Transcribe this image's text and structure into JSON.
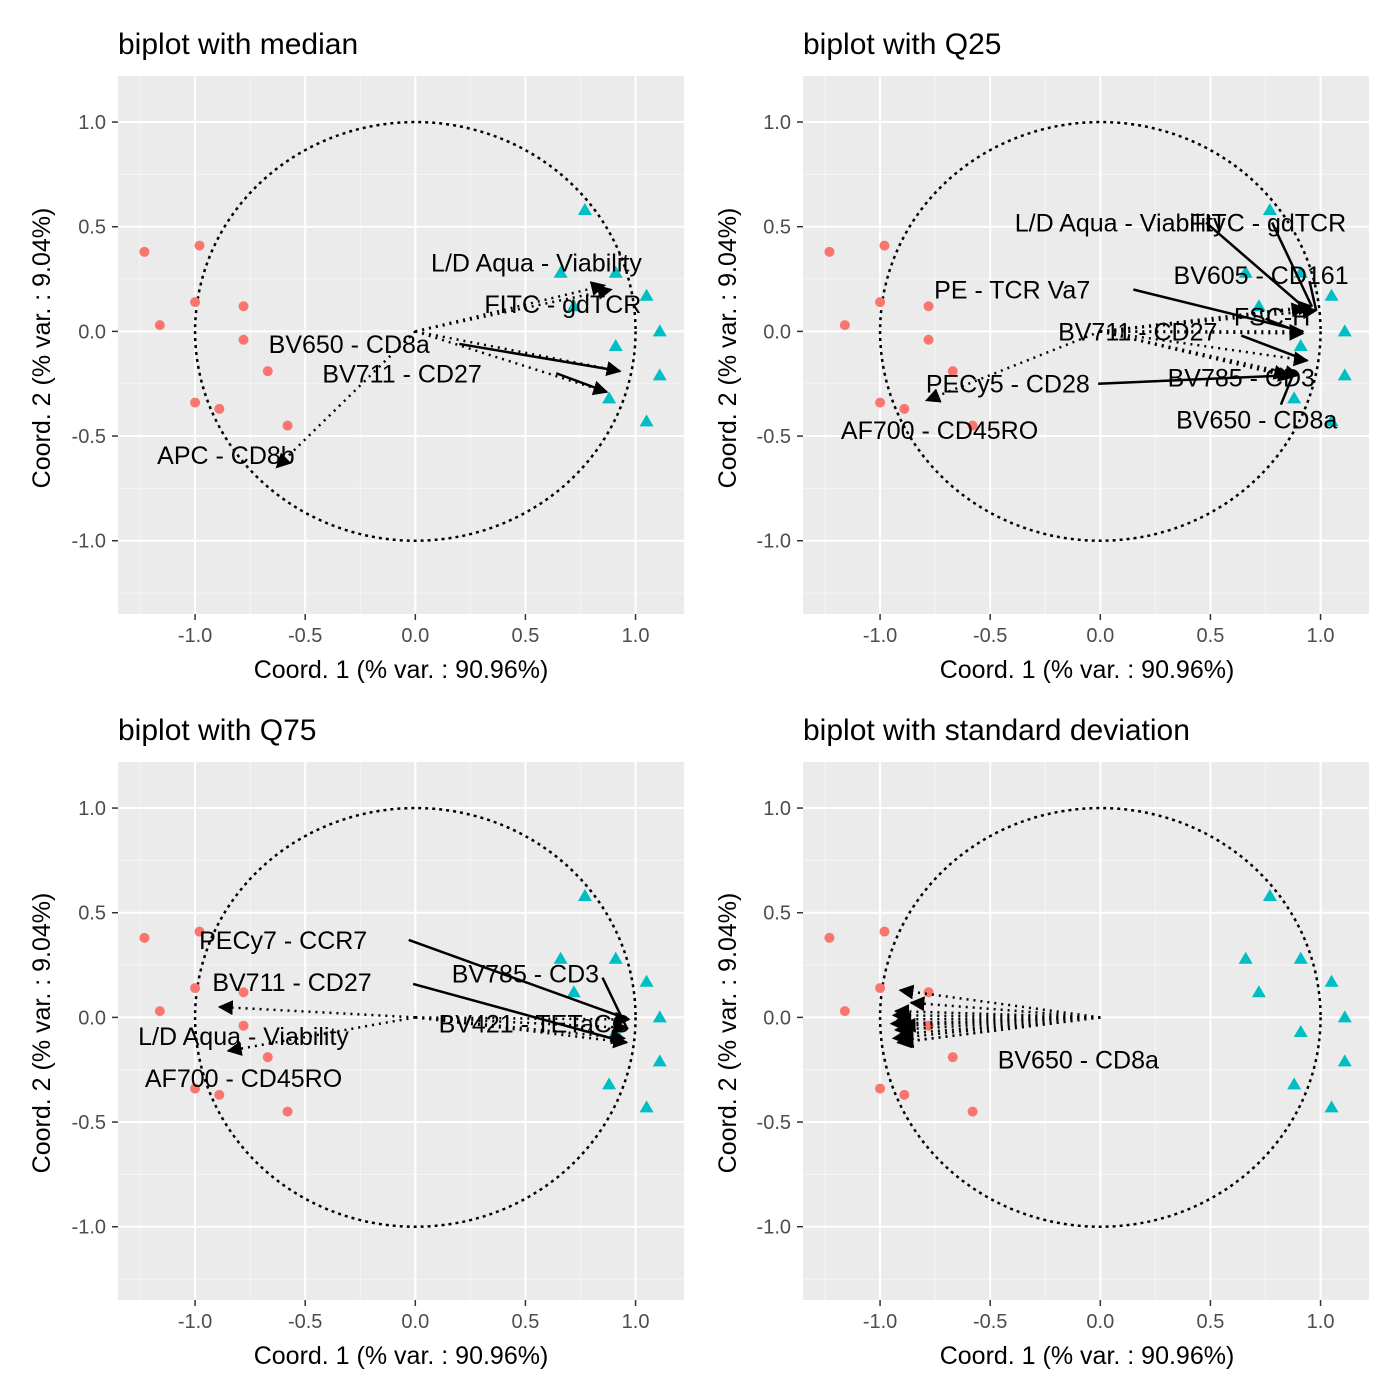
{
  "colors": {
    "panel_background": "#ebebeb",
    "grid_major": "#ffffff",
    "grid_minor": "#f5f5f5",
    "group_a": "#f8766d",
    "group_b": "#00bfc4",
    "arrow": "#000000"
  },
  "chart_data": [
    {
      "type": "scatter",
      "title": "biplot with median",
      "xlabel": "Coord. 1 (% var. : 90.96%)",
      "ylabel": "Coord. 2 (% var. : 9.04%)",
      "xlim": [
        -1.35,
        1.22
      ],
      "ylim": [
        -1.35,
        1.22
      ],
      "xticks": [
        -1.0,
        -0.5,
        0.0,
        0.5,
        1.0
      ],
      "yticks": [
        -1.0,
        -0.5,
        0.0,
        0.5,
        1.0
      ],
      "grid": true,
      "unit_circle": true,
      "series": [
        {
          "marker": "circle",
          "color": "#f8766d",
          "points": [
            [
              -1.23,
              0.38
            ],
            [
              -0.98,
              0.41
            ],
            [
              -1.0,
              0.14
            ],
            [
              -0.78,
              0.12
            ],
            [
              -1.16,
              0.03
            ],
            [
              -0.78,
              -0.04
            ],
            [
              -0.67,
              -0.19
            ],
            [
              -1.0,
              -0.34
            ],
            [
              -0.89,
              -0.37
            ],
            [
              -0.58,
              -0.45
            ]
          ]
        },
        {
          "marker": "triangle",
          "color": "#00bfc4",
          "points": [
            [
              0.77,
              0.58
            ],
            [
              0.66,
              0.28
            ],
            [
              0.91,
              0.28
            ],
            [
              0.72,
              0.12
            ],
            [
              1.05,
              0.17
            ],
            [
              1.11,
              0.0
            ],
            [
              0.91,
              -0.07
            ],
            [
              1.11,
              -0.21
            ],
            [
              0.88,
              -0.32
            ],
            [
              1.05,
              -0.43
            ]
          ]
        }
      ],
      "arrows": [
        {
          "label": "L/D Aqua - Viability",
          "tip": [
            0.86,
            0.22
          ],
          "label_at": [
            0.55,
            0.33
          ],
          "solid_from": null
        },
        {
          "label": "FITC - gdTCR",
          "tip": [
            0.89,
            0.2
          ],
          "label_at": [
            0.67,
            0.13
          ],
          "solid_from": null
        },
        {
          "label": "BV650 - CD8a",
          "tip": [
            0.93,
            -0.19
          ],
          "label_at": [
            -0.3,
            -0.06
          ],
          "solid_from": [
            0.2,
            -0.06
          ]
        },
        {
          "label": "BV711 - CD27",
          "tip": [
            0.87,
            -0.29
          ],
          "label_at": [
            -0.06,
            -0.2
          ],
          "solid_from": [
            0.64,
            -0.2
          ]
        },
        {
          "label": "APC - CD8b",
          "tip": [
            -0.63,
            -0.65
          ],
          "label_at": [
            -0.86,
            -0.59
          ],
          "solid_from": null
        }
      ]
    },
    {
      "type": "scatter",
      "title": "biplot with Q25",
      "xlabel": "Coord. 1 (% var. : 90.96%)",
      "ylabel": "Coord. 2 (% var. : 9.04%)",
      "xlim": [
        -1.35,
        1.22
      ],
      "ylim": [
        -1.35,
        1.22
      ],
      "xticks": [
        -1.0,
        -0.5,
        0.0,
        0.5,
        1.0
      ],
      "yticks": [
        -1.0,
        -0.5,
        0.0,
        0.5,
        1.0
      ],
      "grid": true,
      "unit_circle": true,
      "series": [
        {
          "marker": "circle",
          "color": "#f8766d",
          "points": [
            [
              -1.23,
              0.38
            ],
            [
              -0.98,
              0.41
            ],
            [
              -1.0,
              0.14
            ],
            [
              -0.78,
              0.12
            ],
            [
              -1.16,
              0.03
            ],
            [
              -0.78,
              -0.04
            ],
            [
              -0.67,
              -0.19
            ],
            [
              -1.0,
              -0.34
            ],
            [
              -0.89,
              -0.37
            ],
            [
              -0.58,
              -0.45
            ]
          ]
        },
        {
          "marker": "triangle",
          "color": "#00bfc4",
          "points": [
            [
              0.77,
              0.58
            ],
            [
              0.66,
              0.28
            ],
            [
              0.91,
              0.28
            ],
            [
              0.72,
              0.12
            ],
            [
              1.05,
              0.17
            ],
            [
              1.11,
              0.0
            ],
            [
              0.91,
              -0.07
            ],
            [
              1.11,
              -0.21
            ],
            [
              0.88,
              -0.32
            ],
            [
              1.05,
              -0.43
            ]
          ]
        }
      ],
      "arrows": [
        {
          "label": "L/D Aqua - Viability",
          "tip": [
            0.93,
            0.11
          ],
          "label_at": [
            0.09,
            0.52
          ],
          "solid_from": [
            0.48,
            0.52
          ]
        },
        {
          "label": "FITC - gdTCR",
          "tip": [
            0.96,
            0.12
          ],
          "label_at": [
            0.76,
            0.52
          ],
          "solid_from": [
            0.78,
            0.52
          ]
        },
        {
          "label": "BV605 - CD161",
          "tip": [
            0.98,
            0.1
          ],
          "label_at": [
            0.73,
            0.27
          ],
          "solid_from": [
            0.95,
            0.24
          ]
        },
        {
          "label": "PE - TCR Va7",
          "tip": [
            0.92,
            0.0
          ],
          "label_at": [
            -0.4,
            0.2
          ],
          "solid_from": [
            0.15,
            0.2
          ]
        },
        {
          "label": "FSC-H",
          "tip": [
            0.92,
            -0.01
          ],
          "label_at": [
            0.78,
            0.07
          ],
          "solid_from": [
            0.75,
            0.06
          ]
        },
        {
          "label": "BV711 - CD27",
          "tip": [
            0.94,
            -0.14
          ],
          "label_at": [
            0.17,
            0.0
          ],
          "solid_from": [
            0.64,
            -0.02
          ]
        },
        {
          "label": "BV785 - CD3",
          "tip": [
            0.9,
            -0.21
          ],
          "label_at": [
            0.64,
            -0.22
          ],
          "solid_from": null
        },
        {
          "label": "PECy5 - CD28",
          "tip": [
            0.85,
            -0.21
          ],
          "label_at": [
            -0.42,
            -0.25
          ],
          "solid_from": [
            -0.01,
            -0.25
          ]
        },
        {
          "label": "BV650 - CD8a",
          "tip": [
            0.87,
            -0.22
          ],
          "label_at": [
            0.71,
            -0.42
          ],
          "solid_from": [
            0.82,
            -0.35
          ]
        },
        {
          "label": "AF700 - CD45RO",
          "tip": [
            -0.79,
            -0.33
          ],
          "label_at": [
            -0.73,
            -0.47
          ],
          "solid_from": null
        }
      ]
    },
    {
      "type": "scatter",
      "title": "biplot with Q75",
      "xlabel": "Coord. 1 (% var. : 90.96%)",
      "ylabel": "Coord. 2 (% var. : 9.04%)",
      "xlim": [
        -1.35,
        1.22
      ],
      "ylim": [
        -1.35,
        1.22
      ],
      "xticks": [
        -1.0,
        -0.5,
        0.0,
        0.5,
        1.0
      ],
      "yticks": [
        -1.0,
        -0.5,
        0.0,
        0.5,
        1.0
      ],
      "grid": true,
      "unit_circle": true,
      "series": [
        {
          "marker": "circle",
          "color": "#f8766d",
          "points": [
            [
              -1.23,
              0.38
            ],
            [
              -0.98,
              0.41
            ],
            [
              -1.0,
              0.14
            ],
            [
              -0.78,
              0.12
            ],
            [
              -1.16,
              0.03
            ],
            [
              -0.78,
              -0.04
            ],
            [
              -0.67,
              -0.19
            ],
            [
              -1.0,
              -0.34
            ],
            [
              -0.89,
              -0.37
            ],
            [
              -0.58,
              -0.45
            ]
          ]
        },
        {
          "marker": "triangle",
          "color": "#00bfc4",
          "points": [
            [
              0.77,
              0.58
            ],
            [
              0.66,
              0.28
            ],
            [
              0.91,
              0.28
            ],
            [
              0.72,
              0.12
            ],
            [
              1.05,
              0.17
            ],
            [
              1.11,
              0.0
            ],
            [
              0.91,
              -0.07
            ],
            [
              1.11,
              -0.21
            ],
            [
              0.88,
              -0.32
            ],
            [
              1.05,
              -0.43
            ]
          ]
        }
      ],
      "arrows": [
        {
          "label": "PECy7 - CCR7",
          "tip": [
            0.97,
            -0.01
          ],
          "label_at": [
            -0.6,
            0.37
          ],
          "solid_from": [
            -0.03,
            0.37
          ]
        },
        {
          "label": "BV785 - CD3",
          "tip": [
            0.96,
            -0.05
          ],
          "label_at": [
            0.5,
            0.21
          ],
          "solid_from": [
            0.85,
            0.19
          ]
        },
        {
          "label": "BV711 - CD27",
          "tip": [
            0.96,
            -0.12
          ],
          "label_at": [
            -0.56,
            0.17
          ],
          "solid_from": [
            -0.01,
            0.16
          ]
        },
        {
          "label": "BV421 - TETaCC",
          "tip": [
            0.95,
            -0.1
          ],
          "label_at": [
            0.54,
            -0.03
          ],
          "solid_from": null
        },
        {
          "label": "L/D Aqua - Viability",
          "tip": [
            -0.89,
            0.05
          ],
          "label_at": [
            -0.78,
            -0.09
          ],
          "solid_from": null
        },
        {
          "label": "AF700 - CD45RO",
          "tip": [
            -0.85,
            -0.16
          ],
          "label_at": [
            -0.78,
            -0.29
          ],
          "solid_from": null
        }
      ]
    },
    {
      "type": "scatter",
      "title": "biplot with standard deviation",
      "xlabel": "Coord. 1 (% var. : 90.96%)",
      "ylabel": "Coord. 2 (% var. : 9.04%)",
      "xlim": [
        -1.35,
        1.22
      ],
      "ylim": [
        -1.35,
        1.22
      ],
      "xticks": [
        -1.0,
        -0.5,
        0.0,
        0.5,
        1.0
      ],
      "yticks": [
        -1.0,
        -0.5,
        0.0,
        0.5,
        1.0
      ],
      "grid": true,
      "unit_circle": true,
      "series": [
        {
          "marker": "circle",
          "color": "#f8766d",
          "points": [
            [
              -1.23,
              0.38
            ],
            [
              -0.98,
              0.41
            ],
            [
              -1.0,
              0.14
            ],
            [
              -0.78,
              0.12
            ],
            [
              -1.16,
              0.03
            ],
            [
              -0.78,
              -0.04
            ],
            [
              -0.67,
              -0.19
            ],
            [
              -1.0,
              -0.34
            ],
            [
              -0.89,
              -0.37
            ],
            [
              -0.58,
              -0.45
            ]
          ]
        },
        {
          "marker": "triangle",
          "color": "#00bfc4",
          "points": [
            [
              0.77,
              0.58
            ],
            [
              0.66,
              0.28
            ],
            [
              0.91,
              0.28
            ],
            [
              0.72,
              0.12
            ],
            [
              1.05,
              0.17
            ],
            [
              1.11,
              0.0
            ],
            [
              0.91,
              -0.07
            ],
            [
              1.11,
              -0.21
            ],
            [
              0.88,
              -0.32
            ],
            [
              1.05,
              -0.43
            ]
          ]
        }
      ],
      "arrows": [
        {
          "label": "",
          "tip": [
            -0.91,
            0.13
          ],
          "label_at": null,
          "solid_from": null
        },
        {
          "label": "",
          "tip": [
            -0.86,
            0.07
          ],
          "label_at": null,
          "solid_from": null
        },
        {
          "label": "",
          "tip": [
            -0.93,
            0.03
          ],
          "label_at": null,
          "solid_from": null
        },
        {
          "label": "",
          "tip": [
            -0.94,
            0.01
          ],
          "label_at": null,
          "solid_from": null
        },
        {
          "label": "",
          "tip": [
            -0.92,
            -0.01
          ],
          "label_at": null,
          "solid_from": null
        },
        {
          "label": "",
          "tip": [
            -0.95,
            -0.03
          ],
          "label_at": null,
          "solid_from": null
        },
        {
          "label": "",
          "tip": [
            -0.9,
            -0.04
          ],
          "label_at": null,
          "solid_from": null
        },
        {
          "label": "",
          "tip": [
            -0.93,
            -0.06
          ],
          "label_at": null,
          "solid_from": null
        },
        {
          "label": "",
          "tip": [
            -0.91,
            -0.08
          ],
          "label_at": null,
          "solid_from": null
        },
        {
          "label": "",
          "tip": [
            -0.94,
            -0.1
          ],
          "label_at": null,
          "solid_from": null
        },
        {
          "label": "",
          "tip": [
            -0.92,
            -0.12
          ],
          "label_at": null,
          "solid_from": null
        },
        {
          "label": "BV650 - CD8a",
          "tip": [
            -0.91,
            -0.12
          ],
          "label_at": [
            -0.1,
            -0.2
          ],
          "solid_from": null
        }
      ]
    }
  ]
}
